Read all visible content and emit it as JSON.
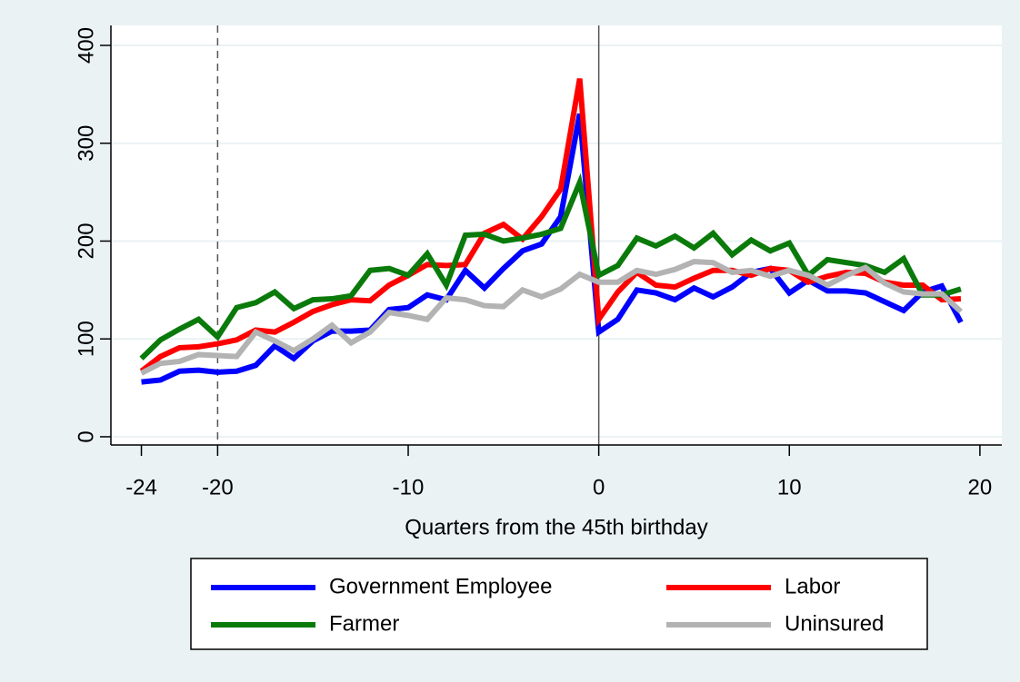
{
  "chart_data": {
    "type": "line",
    "x_label": "Quarters from the 45th birthday",
    "x": [
      -24,
      -23,
      -22,
      -21,
      -20,
      -19,
      -18,
      -17,
      -16,
      -15,
      -14,
      -13,
      -12,
      -11,
      -10,
      -9,
      -8,
      -7,
      -6,
      -5,
      -4,
      -3,
      -2,
      -1,
      0,
      1,
      2,
      3,
      4,
      5,
      6,
      7,
      8,
      9,
      10,
      11,
      12,
      13,
      14,
      15,
      16,
      17,
      18,
      19
    ],
    "series": [
      {
        "name": "Government Employee",
        "color": "#0000ff",
        "values": [
          56,
          58,
          67,
          68,
          66,
          67,
          73,
          93,
          80,
          98,
          108,
          108,
          109,
          130,
          132,
          145,
          140,
          170,
          152,
          172,
          190,
          197,
          225,
          330,
          107,
          120,
          150,
          147,
          140,
          152,
          143,
          153,
          168,
          172,
          147,
          160,
          149,
          149,
          147,
          138,
          129,
          148,
          154,
          117
        ]
      },
      {
        "name": "Labor",
        "color": "#ff0000",
        "values": [
          67,
          82,
          91,
          92,
          95,
          99,
          109,
          107,
          117,
          128,
          135,
          140,
          139,
          155,
          165,
          176,
          175,
          176,
          208,
          217,
          202,
          225,
          253,
          366,
          120,
          148,
          168,
          155,
          153,
          162,
          170,
          170,
          165,
          172,
          170,
          158,
          164,
          168,
          167,
          158,
          155,
          155,
          140,
          141
        ]
      },
      {
        "name": "Farmer",
        "color": "#0a7a0a",
        "values": [
          80,
          99,
          110,
          120,
          102,
          132,
          137,
          148,
          131,
          140,
          141,
          144,
          170,
          172,
          165,
          187,
          155,
          206,
          207,
          200,
          203,
          207,
          213,
          260,
          165,
          175,
          203,
          195,
          205,
          193,
          208,
          186,
          201,
          190,
          198,
          165,
          181,
          178,
          175,
          168,
          182,
          145,
          145,
          151
        ]
      },
      {
        "name": "Uninsured",
        "color": "#b3b3b3",
        "values": [
          65,
          75,
          77,
          84,
          83,
          82,
          107,
          98,
          88,
          100,
          114,
          96,
          107,
          127,
          124,
          120,
          142,
          140,
          134,
          133,
          150,
          143,
          151,
          166,
          158,
          158,
          170,
          166,
          171,
          179,
          178,
          168,
          170,
          164,
          170,
          165,
          155,
          165,
          173,
          157,
          148,
          146,
          146,
          128
        ]
      }
    ],
    "xlim": [
      -25.6,
      21.15
    ],
    "ylim": [
      -8.4,
      420.4
    ],
    "xticks": [
      -24,
      -20,
      -10,
      0,
      10,
      20
    ],
    "yticks": [
      0,
      100,
      200,
      300,
      400
    ],
    "grid": true,
    "xlines": [
      {
        "value": -20,
        "style": "dash"
      },
      {
        "value": 0,
        "style": "solid"
      }
    ],
    "legend": "bottom"
  }
}
